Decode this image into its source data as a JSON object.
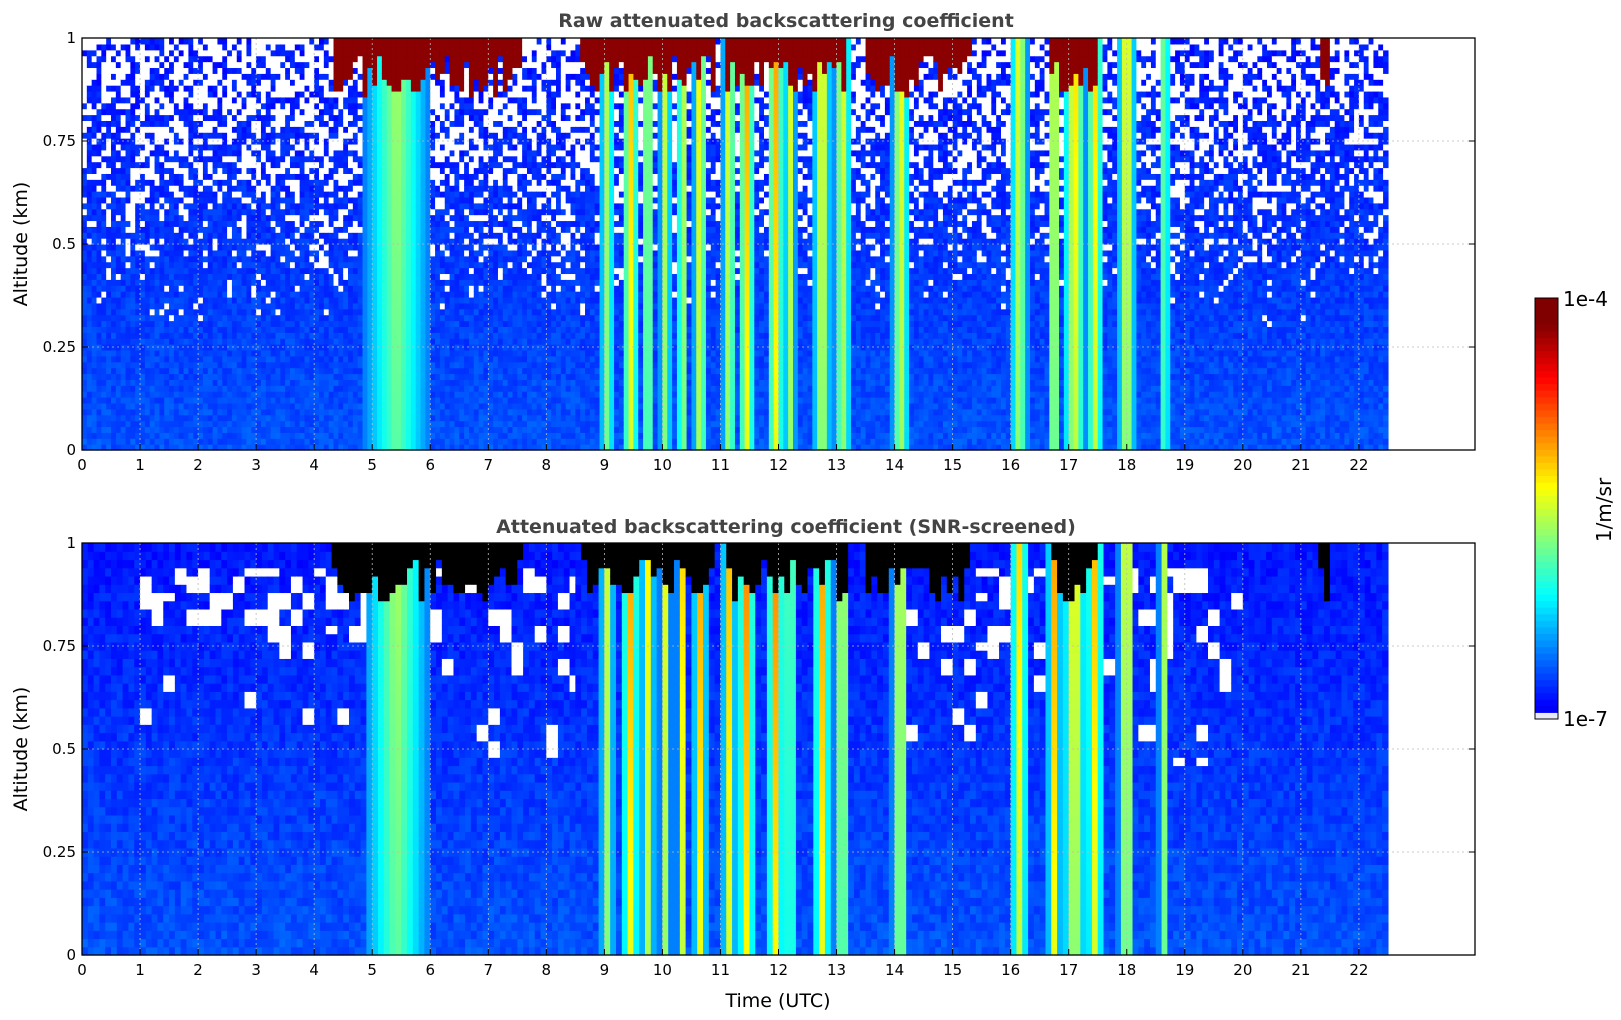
{
  "chart_data": [
    {
      "type": "heatmap",
      "title": "Raw attenuated backscattering coefficient",
      "xlabel": "",
      "ylabel": "Altitude (km)",
      "xlim": [
        0,
        24
      ],
      "ylim": [
        0,
        1
      ],
      "x_ticks": [
        "0",
        "1",
        "2",
        "3",
        "4",
        "5",
        "6",
        "7",
        "8",
        "9",
        "10",
        "11",
        "12",
        "13",
        "14",
        "15",
        "16",
        "17",
        "18",
        "19",
        "20",
        "21",
        "22"
      ],
      "y_ticks": [
        "0",
        "0.25",
        "0.5",
        "0.75",
        "1"
      ],
      "grid": true,
      "data_time_range": [
        0,
        22.5
      ],
      "screened": false,
      "saturated_top_layers": [
        {
          "from": 4.3,
          "to": 7.6
        },
        {
          "from": 8.6,
          "to": 10.9
        },
        {
          "from": 11.1,
          "to": 13.2
        },
        {
          "from": 13.5,
          "to": 15.3
        },
        {
          "from": 16.7,
          "to": 17.5
        },
        {
          "from": 21.3,
          "to": 21.5
        }
      ],
      "cloud_columns": [
        {
          "t": 5.42,
          "w": 0.55,
          "strength": 0.55
        },
        {
          "t": 9.05,
          "w": 0.12,
          "strength": 0.6
        },
        {
          "t": 9.45,
          "w": 0.15,
          "strength": 0.85
        },
        {
          "t": 9.75,
          "w": 0.12,
          "strength": 0.7
        },
        {
          "t": 10.05,
          "w": 0.1,
          "strength": 0.65
        },
        {
          "t": 10.35,
          "w": 0.1,
          "strength": 0.75
        },
        {
          "t": 10.65,
          "w": 0.12,
          "strength": 0.85
        },
        {
          "t": 11.15,
          "w": 0.12,
          "strength": 0.8
        },
        {
          "t": 11.45,
          "w": 0.15,
          "strength": 0.9
        },
        {
          "t": 11.95,
          "w": 0.15,
          "strength": 0.9
        },
        {
          "t": 12.2,
          "w": 0.1,
          "strength": 0.7
        },
        {
          "t": 12.75,
          "w": 0.15,
          "strength": 0.85
        },
        {
          "t": 13.1,
          "w": 0.15,
          "strength": 0.75
        },
        {
          "t": 14.1,
          "w": 0.15,
          "strength": 0.8
        },
        {
          "t": 16.15,
          "w": 0.15,
          "strength": 0.75
        },
        {
          "t": 16.75,
          "w": 0.12,
          "strength": 0.85
        },
        {
          "t": 17.1,
          "w": 0.2,
          "strength": 0.85
        },
        {
          "t": 17.45,
          "w": 0.15,
          "strength": 0.8
        },
        {
          "t": 18.0,
          "w": 0.15,
          "strength": 0.85
        },
        {
          "t": 18.65,
          "w": 0.1,
          "strength": 0.55
        }
      ]
    },
    {
      "type": "heatmap",
      "title": "Attenuated backscattering coefficient (SNR-screened)",
      "xlabel": "Time (UTC)",
      "ylabel": "Altitude (km)",
      "xlim": [
        0,
        24
      ],
      "ylim": [
        0,
        1
      ],
      "x_ticks": [
        "0",
        "1",
        "2",
        "3",
        "4",
        "5",
        "6",
        "7",
        "8",
        "9",
        "10",
        "11",
        "12",
        "13",
        "14",
        "15",
        "16",
        "17",
        "18",
        "19",
        "20",
        "21",
        "22"
      ],
      "y_ticks": [
        "0",
        "0.25",
        "0.5",
        "0.75",
        "1"
      ],
      "grid": true,
      "data_time_range": [
        0,
        22.5
      ],
      "screened": true
    }
  ],
  "colorbar": {
    "label": "1/m/sr",
    "max_label": "1e-4",
    "min_label": "1e-7",
    "colormap": "jet",
    "min_color": "#e8e8f8",
    "max_color": "#800000"
  }
}
